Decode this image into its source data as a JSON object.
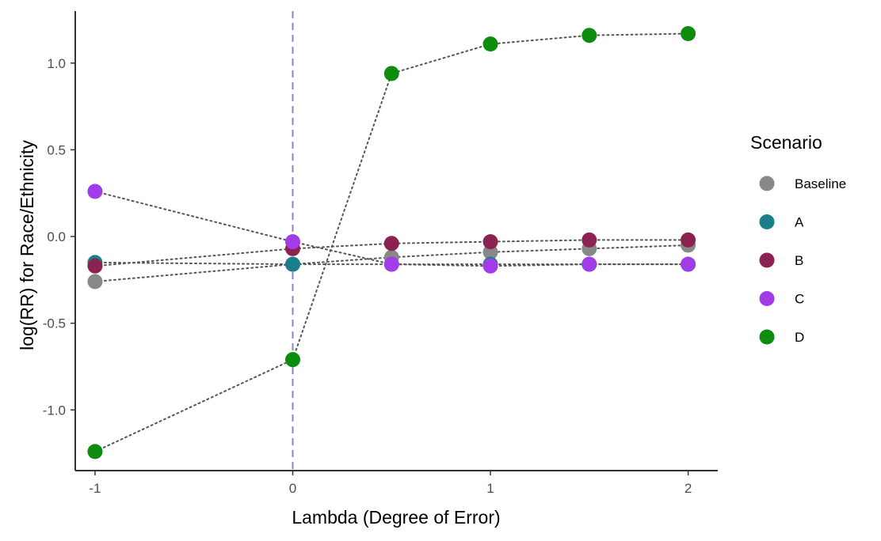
{
  "chart_data": {
    "type": "scatter",
    "xlabel": "Lambda (Degree of Error)",
    "ylabel": "log(RR) for Race/Ethnicity",
    "xlim": [
      -1.1,
      2.15
    ],
    "ylim": [
      -1.35,
      1.3
    ],
    "x_ticks": [
      -1,
      0,
      1,
      2
    ],
    "x_tick_labels": [
      "-1",
      "0",
      "1",
      "2"
    ],
    "y_ticks": [
      -1.0,
      -0.5,
      0.0,
      0.5,
      1.0
    ],
    "y_tick_labels": [
      "-1.0",
      "-0.5",
      "0.0",
      "0.5",
      "1.0"
    ],
    "reference_line": {
      "x": 0,
      "style": "dashed",
      "color": "#8c85c4"
    },
    "grid": false,
    "connector_style": "dotted",
    "connector_color": "#555555",
    "legend": {
      "title": "Scenario",
      "position": "right"
    },
    "x": [
      -1,
      0,
      0.5,
      1,
      1.5,
      2
    ],
    "series": [
      {
        "name": "Baseline",
        "color": "#888888",
        "values": [
          -0.26,
          -0.16,
          -0.12,
          -0.09,
          -0.07,
          -0.05
        ]
      },
      {
        "name": "A",
        "color": "#1a7f8a",
        "values": [
          -0.15,
          -0.16,
          -0.16,
          -0.16,
          -0.16,
          -0.16
        ]
      },
      {
        "name": "B",
        "color": "#8a2252",
        "values": [
          -0.17,
          -0.07,
          -0.04,
          -0.03,
          -0.02,
          -0.02
        ]
      },
      {
        "name": "C",
        "color": "#a23be8",
        "values": [
          0.26,
          -0.03,
          -0.16,
          -0.17,
          -0.16,
          -0.16
        ]
      },
      {
        "name": "D",
        "color": "#0e8c0e",
        "values": [
          -1.24,
          -0.71,
          0.94,
          1.11,
          1.16,
          1.17
        ]
      }
    ]
  }
}
